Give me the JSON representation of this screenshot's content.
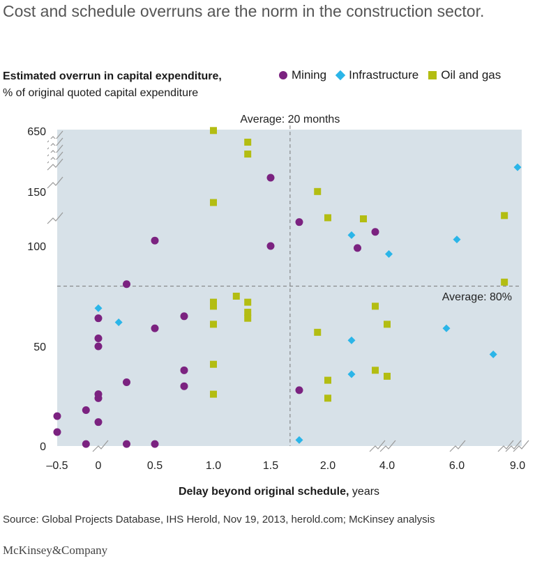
{
  "title": "Cost and schedule overruns are the norm in the construction sector.",
  "source": "Source: Global Projects Database, IHS Herold, Nov 19, 2013, herold.com; McKinsey analysis",
  "logo": "McKinsey&Company",
  "chart_data": {
    "type": "scatter",
    "title": "Cost and schedule overruns are the norm in the construction sector.",
    "ylabel_bold": "Estimated overrun in capital expenditure,",
    "ylabel": "% of original quoted capital expenditure",
    "xlabel_bold": "Delay beyond original schedule,",
    "xlabel": "years",
    "x_ticks": [
      "–0.5",
      "0",
      "0.5",
      "1.0",
      "1.5",
      "2.0",
      "4.0",
      "6.0",
      "9.0"
    ],
    "x_tick_values": [
      -0.5,
      0,
      0.5,
      1.0,
      1.5,
      2.0,
      4.0,
      6.0,
      9.0
    ],
    "y_ticks": [
      "0",
      "50",
      "100",
      "150",
      "650"
    ],
    "y_tick_values": [
      0,
      50,
      100,
      150,
      650
    ],
    "axis_breaks": "broken axes (non-linear scale)",
    "avg_x_label": "Average: 20 months",
    "avg_x": 1.67,
    "avg_y_label": "Average: 80%",
    "avg_y": 80,
    "colors": {
      "Mining": "#7b2280",
      "Infrastructure": "#2bb5e8",
      "Oil and gas": "#b3bd12",
      "plot_bg": "#d7e1e8"
    },
    "series": [
      {
        "name": "Mining",
        "marker": "circle",
        "points": [
          [
            -0.5,
            15
          ],
          [
            -0.5,
            7
          ],
          [
            -0.15,
            18
          ],
          [
            -0.15,
            1
          ],
          [
            0,
            64
          ],
          [
            0,
            54
          ],
          [
            0,
            50
          ],
          [
            0,
            26
          ],
          [
            0,
            24
          ],
          [
            0,
            12
          ],
          [
            0.25,
            81
          ],
          [
            0.25,
            32
          ],
          [
            0.25,
            1
          ],
          [
            0.5,
            105
          ],
          [
            0.5,
            59
          ],
          [
            0.5,
            1
          ],
          [
            0.75,
            65
          ],
          [
            0.75,
            38
          ],
          [
            0.75,
            30
          ],
          [
            1.5,
            265
          ],
          [
            1.5,
            100
          ],
          [
            1.75,
            122
          ],
          [
            1.75,
            28
          ],
          [
            3.0,
            99
          ],
          [
            3.6,
            113
          ]
        ]
      },
      {
        "name": "Infrastructure",
        "marker": "diamond",
        "points": [
          [
            0,
            69
          ],
          [
            0.18,
            62
          ],
          [
            1.75,
            3
          ],
          [
            2.8,
            110
          ],
          [
            2.8,
            53
          ],
          [
            2.8,
            36
          ],
          [
            4.05,
            96
          ],
          [
            5.7,
            59
          ],
          [
            6.0,
            106
          ],
          [
            7.8,
            46
          ],
          [
            9.0,
            351
          ]
        ]
      },
      {
        "name": "Oil and gas",
        "marker": "square",
        "points": [
          [
            1.0,
            654
          ],
          [
            1.0,
            140
          ],
          [
            1.3,
            558
          ],
          [
            1.3,
            460
          ],
          [
            1.0,
            72
          ],
          [
            1.0,
            70
          ],
          [
            1.0,
            61
          ],
          [
            1.0,
            41
          ],
          [
            1.0,
            26
          ],
          [
            1.2,
            75
          ],
          [
            1.3,
            72
          ],
          [
            1.3,
            67
          ],
          [
            1.3,
            64
          ],
          [
            1.91,
            151
          ],
          [
            2.0,
            126
          ],
          [
            3.2,
            125
          ],
          [
            1.91,
            57
          ],
          [
            2.0,
            33
          ],
          [
            2.0,
            24
          ],
          [
            3.6,
            70
          ],
          [
            4.0,
            61
          ],
          [
            3.6,
            38
          ],
          [
            4.0,
            35
          ],
          [
            8.35,
            128
          ],
          [
            8.35,
            82
          ]
        ]
      }
    ]
  }
}
